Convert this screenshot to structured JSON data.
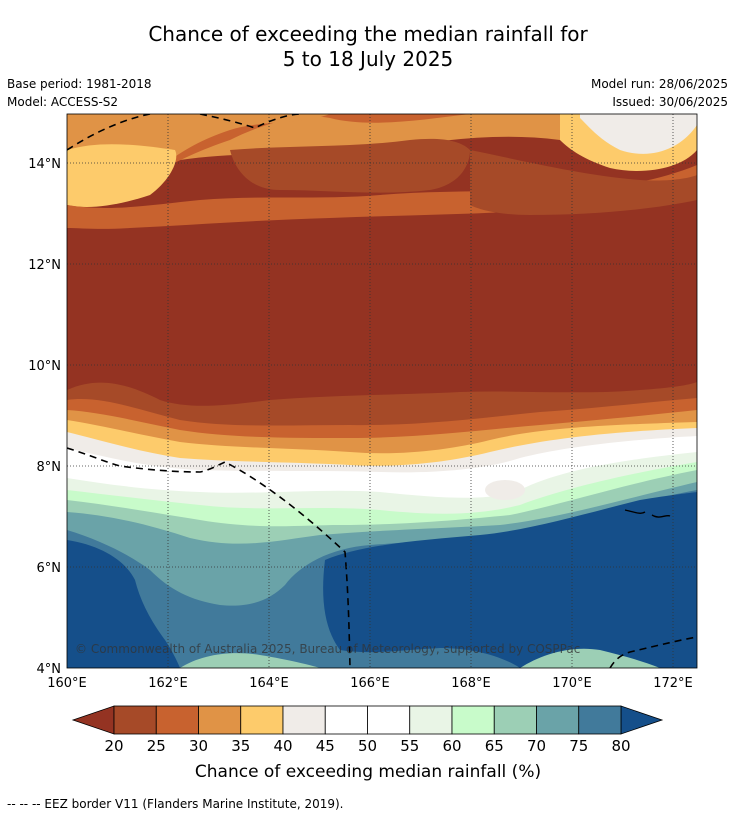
{
  "title_line1": "Chance of exceeding the median rainfall for",
  "title_line2": "5 to 18 July 2025",
  "meta": {
    "base_period": "Base period: 1981-2018",
    "model": "Model: ACCESS-S2",
    "model_run": "Model run: 28/06/2025",
    "issued": "Issued: 30/06/2025"
  },
  "copyright": "© Commonwealth of Australia 2025, Bureau of Meteorology, supported by COSPPac",
  "lat_labels": [
    "14°N",
    "12°N",
    "10°N",
    "8°N",
    "6°N",
    "4°N"
  ],
  "lon_labels": [
    "160°E",
    "162°E",
    "164°E",
    "166°E",
    "168°E",
    "170°E",
    "172°E"
  ],
  "colorbar": {
    "title": "Chance of exceeding median rainfall (%)",
    "ticks": [
      "20",
      "25",
      "30",
      "35",
      "40",
      "45",
      "50",
      "55",
      "60",
      "65",
      "70",
      "75",
      "80"
    ],
    "colors": [
      "#a64a28",
      "#c8622f",
      "#e09346",
      "#fdcb6b",
      "#f0ece8",
      "#ffffff",
      "#ffffff",
      "#e9f5e6",
      "#c8fbca",
      "#9ccfb5",
      "#6aa3a8",
      "#417a9b"
    ],
    "under_color": "#943322",
    "over_color": "#154f8a"
  },
  "footnote": "--  --  -- EEZ border V11 (Flanders Marine Institute, 2019)."
}
